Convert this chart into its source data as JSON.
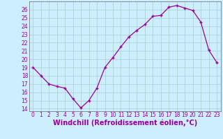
{
  "x": [
    0,
    1,
    2,
    3,
    4,
    5,
    6,
    7,
    8,
    9,
    10,
    11,
    12,
    13,
    14,
    15,
    16,
    17,
    18,
    19,
    20,
    21,
    22,
    23
  ],
  "y": [
    19,
    18,
    17,
    16.7,
    16.5,
    15.2,
    14.1,
    15.0,
    16.5,
    19.0,
    20.2,
    21.5,
    22.7,
    23.5,
    24.2,
    25.2,
    25.3,
    26.3,
    26.5,
    26.2,
    25.9,
    24.5,
    21.1,
    19.6
  ],
  "xlabel": "Windchill (Refroidissement éolien,°C)",
  "ylim": [
    13.7,
    27.0
  ],
  "xlim": [
    -0.5,
    23.5
  ],
  "yticks": [
    14,
    15,
    16,
    17,
    18,
    19,
    20,
    21,
    22,
    23,
    24,
    25,
    26
  ],
  "xticks": [
    0,
    1,
    2,
    3,
    4,
    5,
    6,
    7,
    8,
    9,
    10,
    11,
    12,
    13,
    14,
    15,
    16,
    17,
    18,
    19,
    20,
    21,
    22,
    23
  ],
  "line_color": "#990099",
  "marker": "+",
  "bg_color": "#cceeff",
  "grid_color": "#aacccc",
  "text_color": "#990099",
  "tick_label_size": 5.5,
  "xlabel_size": 7.0
}
